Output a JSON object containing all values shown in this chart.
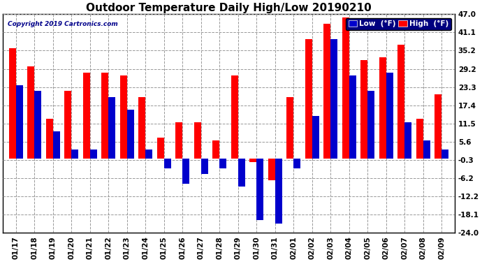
{
  "title": "Outdoor Temperature Daily High/Low 20190210",
  "copyright": "Copyright 2019 Cartronics.com",
  "dates": [
    "01/17",
    "01/18",
    "01/19",
    "01/20",
    "01/21",
    "01/22",
    "01/23",
    "01/24",
    "01/25",
    "01/26",
    "01/27",
    "01/28",
    "01/29",
    "01/30",
    "01/31",
    "02/01",
    "02/02",
    "02/03",
    "02/04",
    "02/05",
    "02/06",
    "02/07",
    "02/08",
    "02/09"
  ],
  "high_temps": [
    36,
    30,
    13,
    22,
    28,
    28,
    27,
    20,
    7,
    12,
    12,
    6,
    27,
    -1,
    -7,
    20,
    39,
    44,
    46,
    32,
    33,
    37,
    13,
    21
  ],
  "low_temps": [
    24,
    22,
    9,
    3,
    3,
    20,
    16,
    3,
    -3,
    -8,
    -5,
    -3,
    -9,
    -20,
    -21,
    -3,
    14,
    39,
    27,
    22,
    28,
    12,
    6,
    3
  ],
  "high_color": "#ff0000",
  "low_color": "#0000cc",
  "bg_color": "#ffffff",
  "grid_color": "#999999",
  "title_fontsize": 11,
  "ylim": [
    -24,
    47
  ],
  "yticks": [
    -24.0,
    -18.1,
    -12.2,
    -6.2,
    -0.3,
    5.6,
    11.5,
    17.4,
    23.3,
    29.2,
    35.2,
    41.1,
    47.0
  ],
  "legend_low_label": "Low  (°F)",
  "legend_high_label": "High  (°F)",
  "bar_width": 0.38
}
